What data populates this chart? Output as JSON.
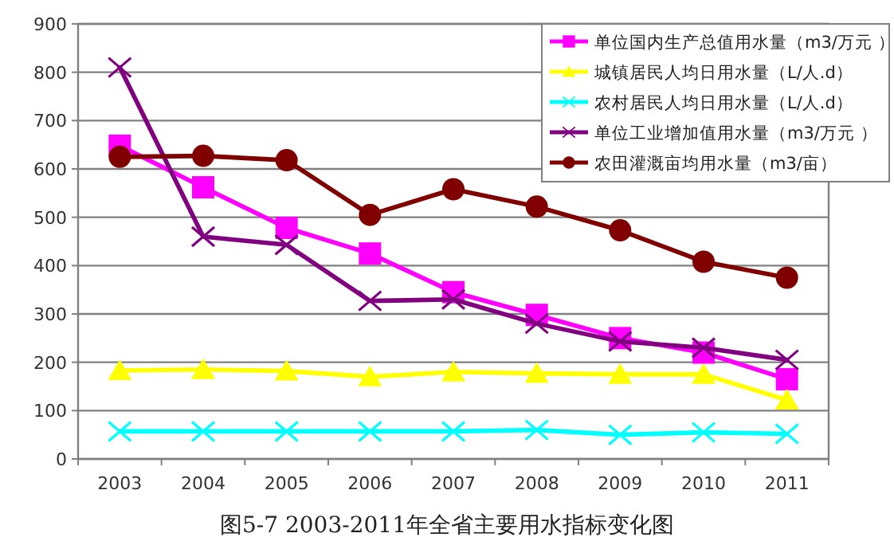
{
  "chart_data": {
    "type": "line",
    "title": "图5-7 2003-2011年全省主要用水指标变化图",
    "categories": [
      "2003",
      "2004",
      "2005",
      "2006",
      "2007",
      "2008",
      "2009",
      "2010",
      "2011"
    ],
    "ylim": [
      0,
      900
    ],
    "yticks": [
      0,
      100,
      200,
      300,
      400,
      500,
      600,
      700,
      800,
      900
    ],
    "grid": "y",
    "legend": "top right",
    "series": [
      {
        "name": "单位国内生产总值用水量（m3/万元 ）",
        "color": "#ff00ff",
        "marker": "square",
        "values": [
          648,
          562,
          478,
          425,
          345,
          298,
          250,
          220,
          165
        ]
      },
      {
        "name": "城镇居民人均日用水量（L/人.d）",
        "color": "#ffff00",
        "marker": "triangle",
        "values": [
          183,
          185,
          182,
          170,
          180,
          177,
          175,
          175,
          122
        ]
      },
      {
        "name": "农村居民人均日用水量（L/人.d）",
        "color": "#00ffff",
        "marker": "cross",
        "values": [
          57,
          57,
          57,
          57,
          57,
          60,
          50,
          55,
          52
        ]
      },
      {
        "name": "单位工业增加值用水量（m3/万元 ）",
        "color": "#800080",
        "marker": "cross",
        "values": [
          810,
          460,
          443,
          327,
          330,
          280,
          243,
          230,
          205
        ]
      },
      {
        "name": "农田灌溉亩均用水量（m3/亩）",
        "color": "#800000",
        "marker": "circle",
        "values": [
          625,
          627,
          618,
          505,
          558,
          522,
          473,
          408,
          375
        ]
      }
    ]
  }
}
